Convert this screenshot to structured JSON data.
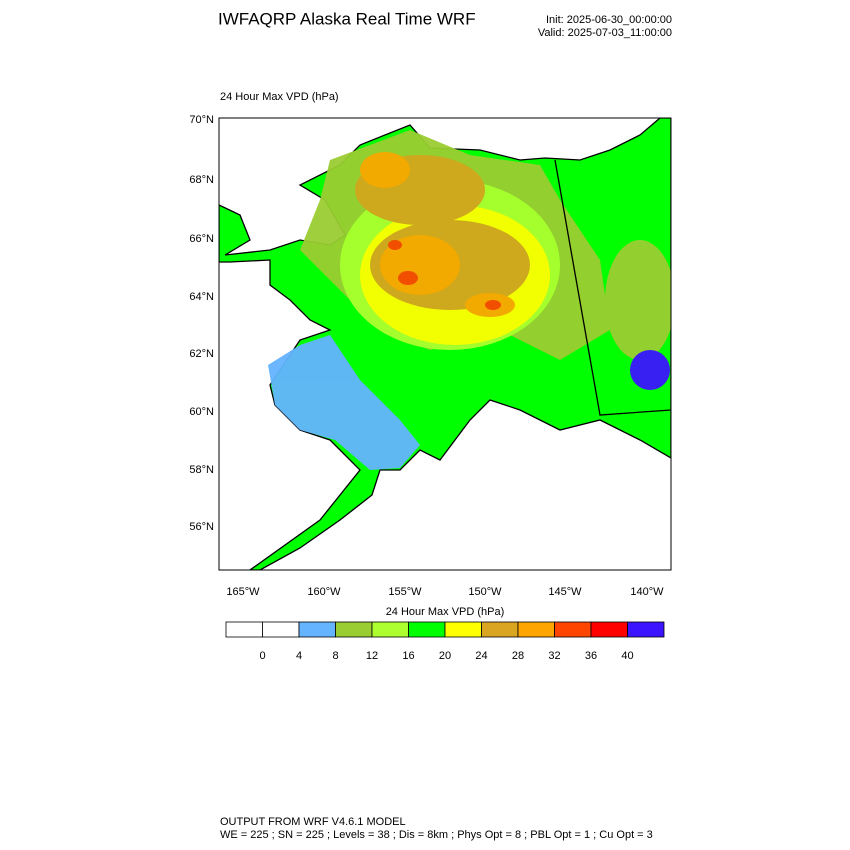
{
  "header": {
    "title": "IWFAQRP Alaska Real Time WRF",
    "init": "Init: 2025-06-30_00:00:00",
    "valid": "Valid: 2025-07-03_11:00:00"
  },
  "map": {
    "subtitle": "24 Hour Max VPD   (hPa)",
    "lat_labels": [
      "70°N",
      "68°N",
      "66°N",
      "64°N",
      "62°N",
      "60°N",
      "58°N",
      "56°N"
    ],
    "lon_labels": [
      "165°W",
      "160°W",
      "155°W",
      "150°W",
      "145°W",
      "140°W"
    ]
  },
  "colorbar": {
    "title": "24 Hour Max VPD  (hPa)",
    "colors": [
      "#ffffff",
      "#ffffff",
      "#64b4ff",
      "#9acd32",
      "#adff2f",
      "#00ff00",
      "#ffff00",
      "#daa520",
      "#ffa500",
      "#ff4500",
      "#ff0000",
      "#3c14ff"
    ],
    "labels": [
      0,
      4,
      8,
      12,
      16,
      20,
      24,
      28,
      32,
      36,
      40
    ]
  },
  "footer": {
    "line1": "OUTPUT FROM WRF V4.6.1 MODEL",
    "line2": "WE = 225 ; SN = 225 ; Levels = 38 ; Dis = 8km ; Phys Opt = 8 ; PBL Opt = 1 ; Cu Opt = 3"
  }
}
